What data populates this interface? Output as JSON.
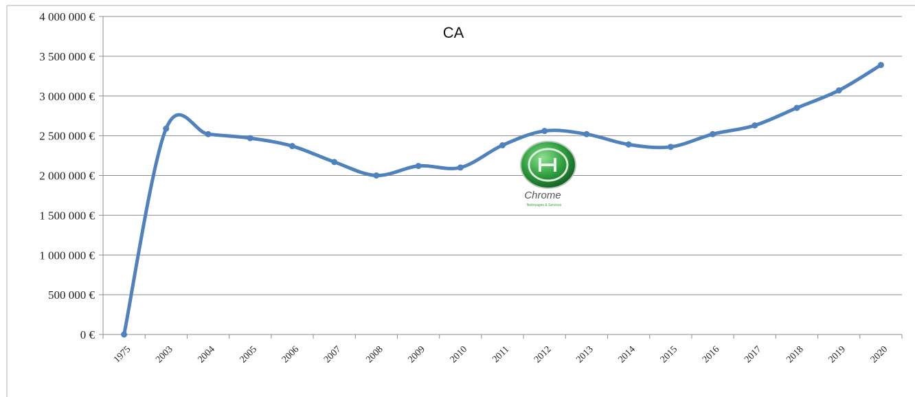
{
  "chart_data": {
    "type": "line",
    "title": "CA",
    "xlabel": "",
    "ylabel": "",
    "categories": [
      "1975",
      "2003",
      "2004",
      "2005",
      "2006",
      "2007",
      "2008",
      "2009",
      "2010",
      "2011",
      "2012",
      "2013",
      "2014",
      "2015",
      "2016",
      "2017",
      "2018",
      "2019",
      "2020"
    ],
    "series": [
      {
        "values": [
          0,
          2590000,
          2520000,
          2470000,
          2370000,
          2170000,
          2000000,
          2120000,
          2100000,
          2380000,
          2560000,
          2520000,
          2390000,
          2360000,
          2520000,
          2630000,
          2850000,
          3070000,
          3390000
        ]
      }
    ],
    "ylim": [
      0,
      4000000
    ],
    "yticks": [
      0,
      500000,
      1000000,
      1500000,
      2000000,
      2500000,
      3000000,
      3500000,
      4000000
    ],
    "ytick_labels": [
      "0 €",
      "500 000 €",
      "1 000 000 €",
      "1 500 000 €",
      "2 000 000 €",
      "2 500 000 €",
      "3 000 000 €",
      "3 500 000 €",
      "4 000 000 €"
    ],
    "grid": true,
    "smooth": true,
    "line_color": "#4f81bd",
    "legend": "none"
  },
  "logo": {
    "name": "Chrome",
    "tagline": "Nettoyages & Services"
  }
}
